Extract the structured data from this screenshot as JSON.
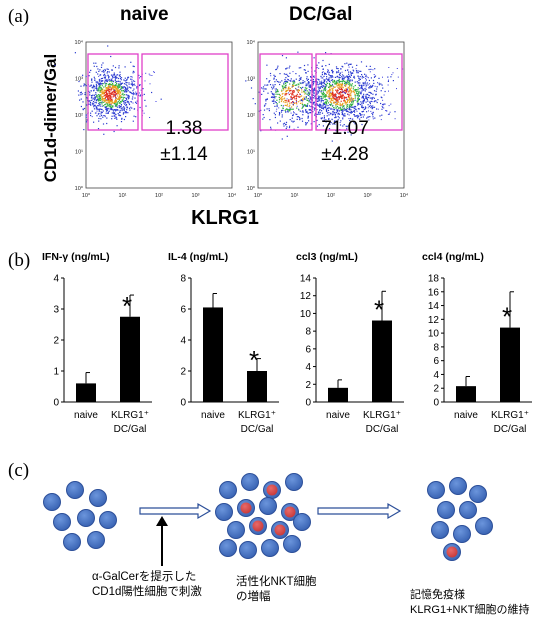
{
  "panels": {
    "a": "(a)",
    "b": "(b)",
    "c": "(c)"
  },
  "panel_a": {
    "ylabel": "CD1d-dimer/Gal",
    "xlabel": "KLRG1",
    "left_title": "naive",
    "right_title": "DC/Gal",
    "y_ticks": [
      "10⁴",
      "10³",
      "10²",
      "10¹",
      "10⁰"
    ],
    "x_ticks": [
      "10⁰",
      "10¹",
      "10²",
      "10³",
      "10⁴"
    ],
    "left_stat_mean": "1.38",
    "left_stat_sd": "±1.14",
    "right_stat_mean": "71.07",
    "right_stat_sd": "±4.28",
    "gate_color": "#e040c8"
  },
  "chart_data": [
    {
      "type": "scatter",
      "title": "naive",
      "xlabel": "KLRG1",
      "ylabel": "CD1d-dimer/Gal",
      "scale": "log",
      "xlim": [
        1,
        10000
      ],
      "ylim": [
        1,
        10000
      ],
      "gate_percent_klrg1_positive": 1.38,
      "gate_percent_sd": 1.14
    },
    {
      "type": "scatter",
      "title": "DC/Gal",
      "xlabel": "KLRG1",
      "ylabel": "CD1d-dimer/Gal",
      "scale": "log",
      "xlim": [
        1,
        10000
      ],
      "ylim": [
        1,
        10000
      ],
      "gate_percent_klrg1_positive": 71.07,
      "gate_percent_sd": 4.28
    },
    {
      "type": "bar",
      "title": "IFN-γ (ng/mL)",
      "categories": [
        "naive",
        "KLRG1⁺ DC/Gal"
      ],
      "values": [
        0.6,
        2.75
      ],
      "errors": [
        0.35,
        0.7
      ],
      "significant": [
        false,
        true
      ],
      "ylim": [
        0,
        4
      ],
      "yticks": [
        0,
        1,
        2,
        3,
        4
      ]
    },
    {
      "type": "bar",
      "title": "IL-4 (ng/mL)",
      "categories": [
        "naive",
        "KLRG1⁺ DC/Gal"
      ],
      "values": [
        6.1,
        2.0
      ],
      "errors": [
        0.9,
        0.8
      ],
      "significant": [
        false,
        true
      ],
      "ylim": [
        0,
        8
      ],
      "yticks": [
        0,
        2,
        4,
        6,
        8
      ]
    },
    {
      "type": "bar",
      "title": "ccl3 (ng/mL)",
      "categories": [
        "naive",
        "KLRG1⁺ DC/Gal"
      ],
      "values": [
        1.6,
        9.2
      ],
      "errors": [
        0.9,
        3.3
      ],
      "significant": [
        false,
        true
      ],
      "ylim": [
        0,
        14
      ],
      "yticks": [
        0,
        2,
        4,
        6,
        8,
        10,
        12,
        14
      ]
    },
    {
      "type": "bar",
      "title": "ccl4 (ng/mL)",
      "categories": [
        "naive",
        "KLRG1⁺ DC/Gal"
      ],
      "values": [
        2.3,
        10.8
      ],
      "errors": [
        1.4,
        5.2
      ],
      "significant": [
        false,
        true
      ],
      "ylim": [
        0,
        18
      ],
      "yticks": [
        0,
        2,
        4,
        6,
        8,
        10,
        12,
        14,
        16,
        18
      ]
    }
  ],
  "bar_labels": {
    "cat1": "naive",
    "cat2_line1": "KLRG1⁺",
    "cat2_line2": "DC/Gal",
    "star": "*"
  },
  "panel_c": {
    "stimulus_line1": "α-GalCerを提示した",
    "stimulus_line2": "CD1d陽性細胞で刺激",
    "expansion_line1": "活性化NKT細胞",
    "expansion_line2": "の増幅",
    "memory_line1": "記憶免疫様",
    "memory_line2": "KLRG1+NKT細胞の維持",
    "cell_color": "#4a78c8",
    "activated_color": "#d84848"
  }
}
